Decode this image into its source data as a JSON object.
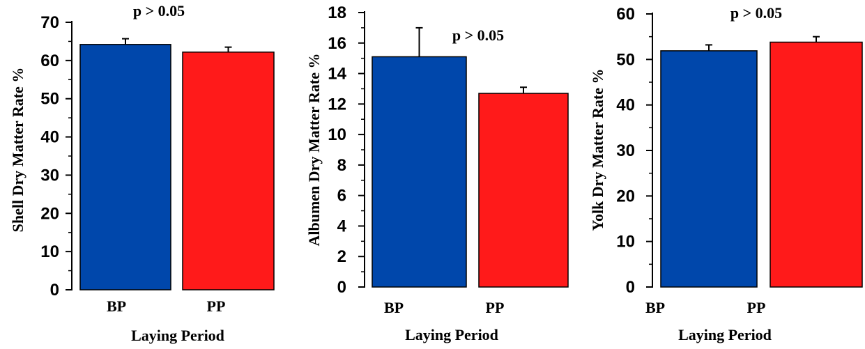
{
  "chart_data": [
    {
      "type": "bar",
      "categories": [
        "BP",
        "PP"
      ],
      "values": [
        64.2,
        62.2
      ],
      "errors": [
        1.5,
        1.3
      ],
      "colors": [
        "#0047AB",
        "#FF1A1A"
      ],
      "ylabel": "Shell Dry Matter Rate %",
      "xlabel": "Laying Period",
      "ylim": [
        0,
        70
      ],
      "yticks": [
        0,
        10,
        20,
        30,
        40,
        50,
        60,
        70
      ],
      "annotation": "p > 0.05"
    },
    {
      "type": "bar",
      "categories": [
        "BP",
        "PP"
      ],
      "values": [
        15.1,
        12.7
      ],
      "errors": [
        1.9,
        0.4
      ],
      "colors": [
        "#0047AB",
        "#FF1A1A"
      ],
      "ylabel": "Albumen Dry Matter Rate %",
      "xlabel": "Laying Period",
      "ylim": [
        0,
        18
      ],
      "yticks": [
        0,
        2,
        4,
        6,
        8,
        10,
        12,
        14,
        16,
        18
      ],
      "annotation": "p > 0.05"
    },
    {
      "type": "bar",
      "categories": [
        "BP",
        "PP"
      ],
      "values": [
        51.9,
        53.8
      ],
      "errors": [
        1.3,
        1.2
      ],
      "colors": [
        "#0047AB",
        "#FF1A1A"
      ],
      "ylabel": "Yolk Dry Matter Rate %",
      "xlabel": "Laying Period",
      "ylim": [
        0,
        60
      ],
      "yticks": [
        0,
        10,
        20,
        30,
        40,
        50,
        60
      ],
      "annotation": "p > 0.05"
    }
  ]
}
